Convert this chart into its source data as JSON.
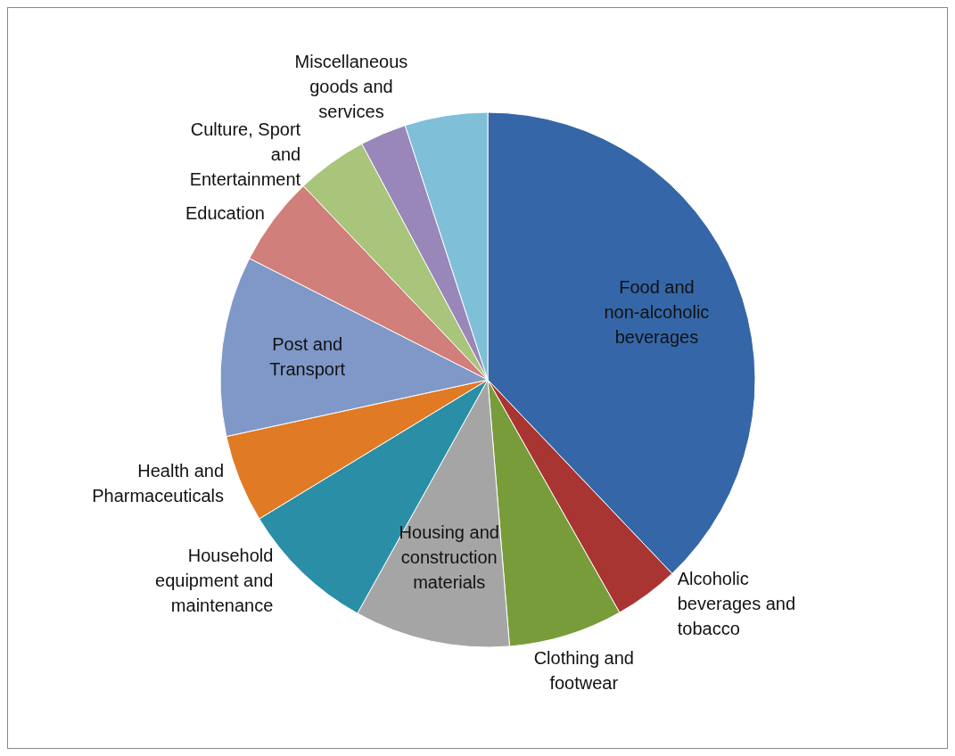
{
  "chart_data": {
    "type": "pie",
    "categories": [
      "Food and non-alcoholic beverages",
      "Alcoholic beverages and tobacco",
      "Clothing and footwear",
      "Housing and construction materials",
      "Household equipment and maintenance",
      "Health and Pharmaceuticals",
      "Post and Transport",
      "Education",
      "Culture, Sport and Entertainment",
      "Miscellaneous goods and services",
      null
    ],
    "values": [
      37.9,
      3.9,
      6.9,
      9.4,
      8.2,
      5.3,
      10.9,
      5.4,
      4.3,
      2.8,
      5.0
    ],
    "colors": [
      "#3567a8",
      "#a83532",
      "#789c3a",
      "#a5a5a5",
      "#2a8ea6",
      "#e07a24",
      "#7f98c8",
      "#d07f7b",
      "#a9c47b",
      "#9887b8",
      "#7fbfd8"
    ]
  }
}
